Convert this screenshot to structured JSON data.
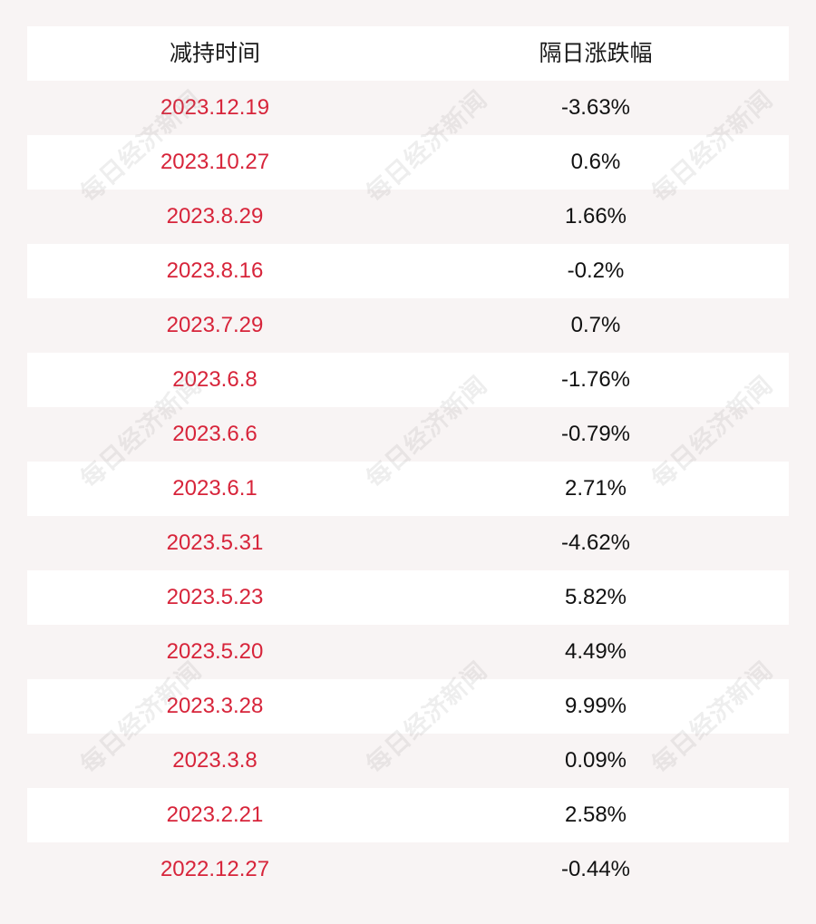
{
  "table": {
    "headers": {
      "date": "减持时间",
      "change": "隔日涨跌幅"
    },
    "rows": [
      {
        "date": "2023.12.19",
        "change": "-3.63%"
      },
      {
        "date": "2023.10.27",
        "change": "0.6%"
      },
      {
        "date": "2023.8.29",
        "change": "1.66%"
      },
      {
        "date": "2023.8.16",
        "change": "-0.2%"
      },
      {
        "date": "2023.7.29",
        "change": "0.7%"
      },
      {
        "date": "2023.6.8",
        "change": "-1.76%"
      },
      {
        "date": "2023.6.6",
        "change": "-0.79%"
      },
      {
        "date": "2023.6.1",
        "change": "2.71%"
      },
      {
        "date": "2023.5.31",
        "change": "-4.62%"
      },
      {
        "date": "2023.5.23",
        "change": "5.82%"
      },
      {
        "date": "2023.5.20",
        "change": "4.49%"
      },
      {
        "date": "2023.3.28",
        "change": "9.99%"
      },
      {
        "date": "2023.3.8",
        "change": "0.09%"
      },
      {
        "date": "2023.2.21",
        "change": "2.58%"
      },
      {
        "date": "2022.12.27",
        "change": "-0.44%"
      }
    ]
  },
  "watermark": {
    "text": "每日经济新闻"
  },
  "colors": {
    "date_text": "#d7243a",
    "value_text": "#111111",
    "row_white": "#ffffff",
    "row_tinted": "#f8f4f4"
  }
}
